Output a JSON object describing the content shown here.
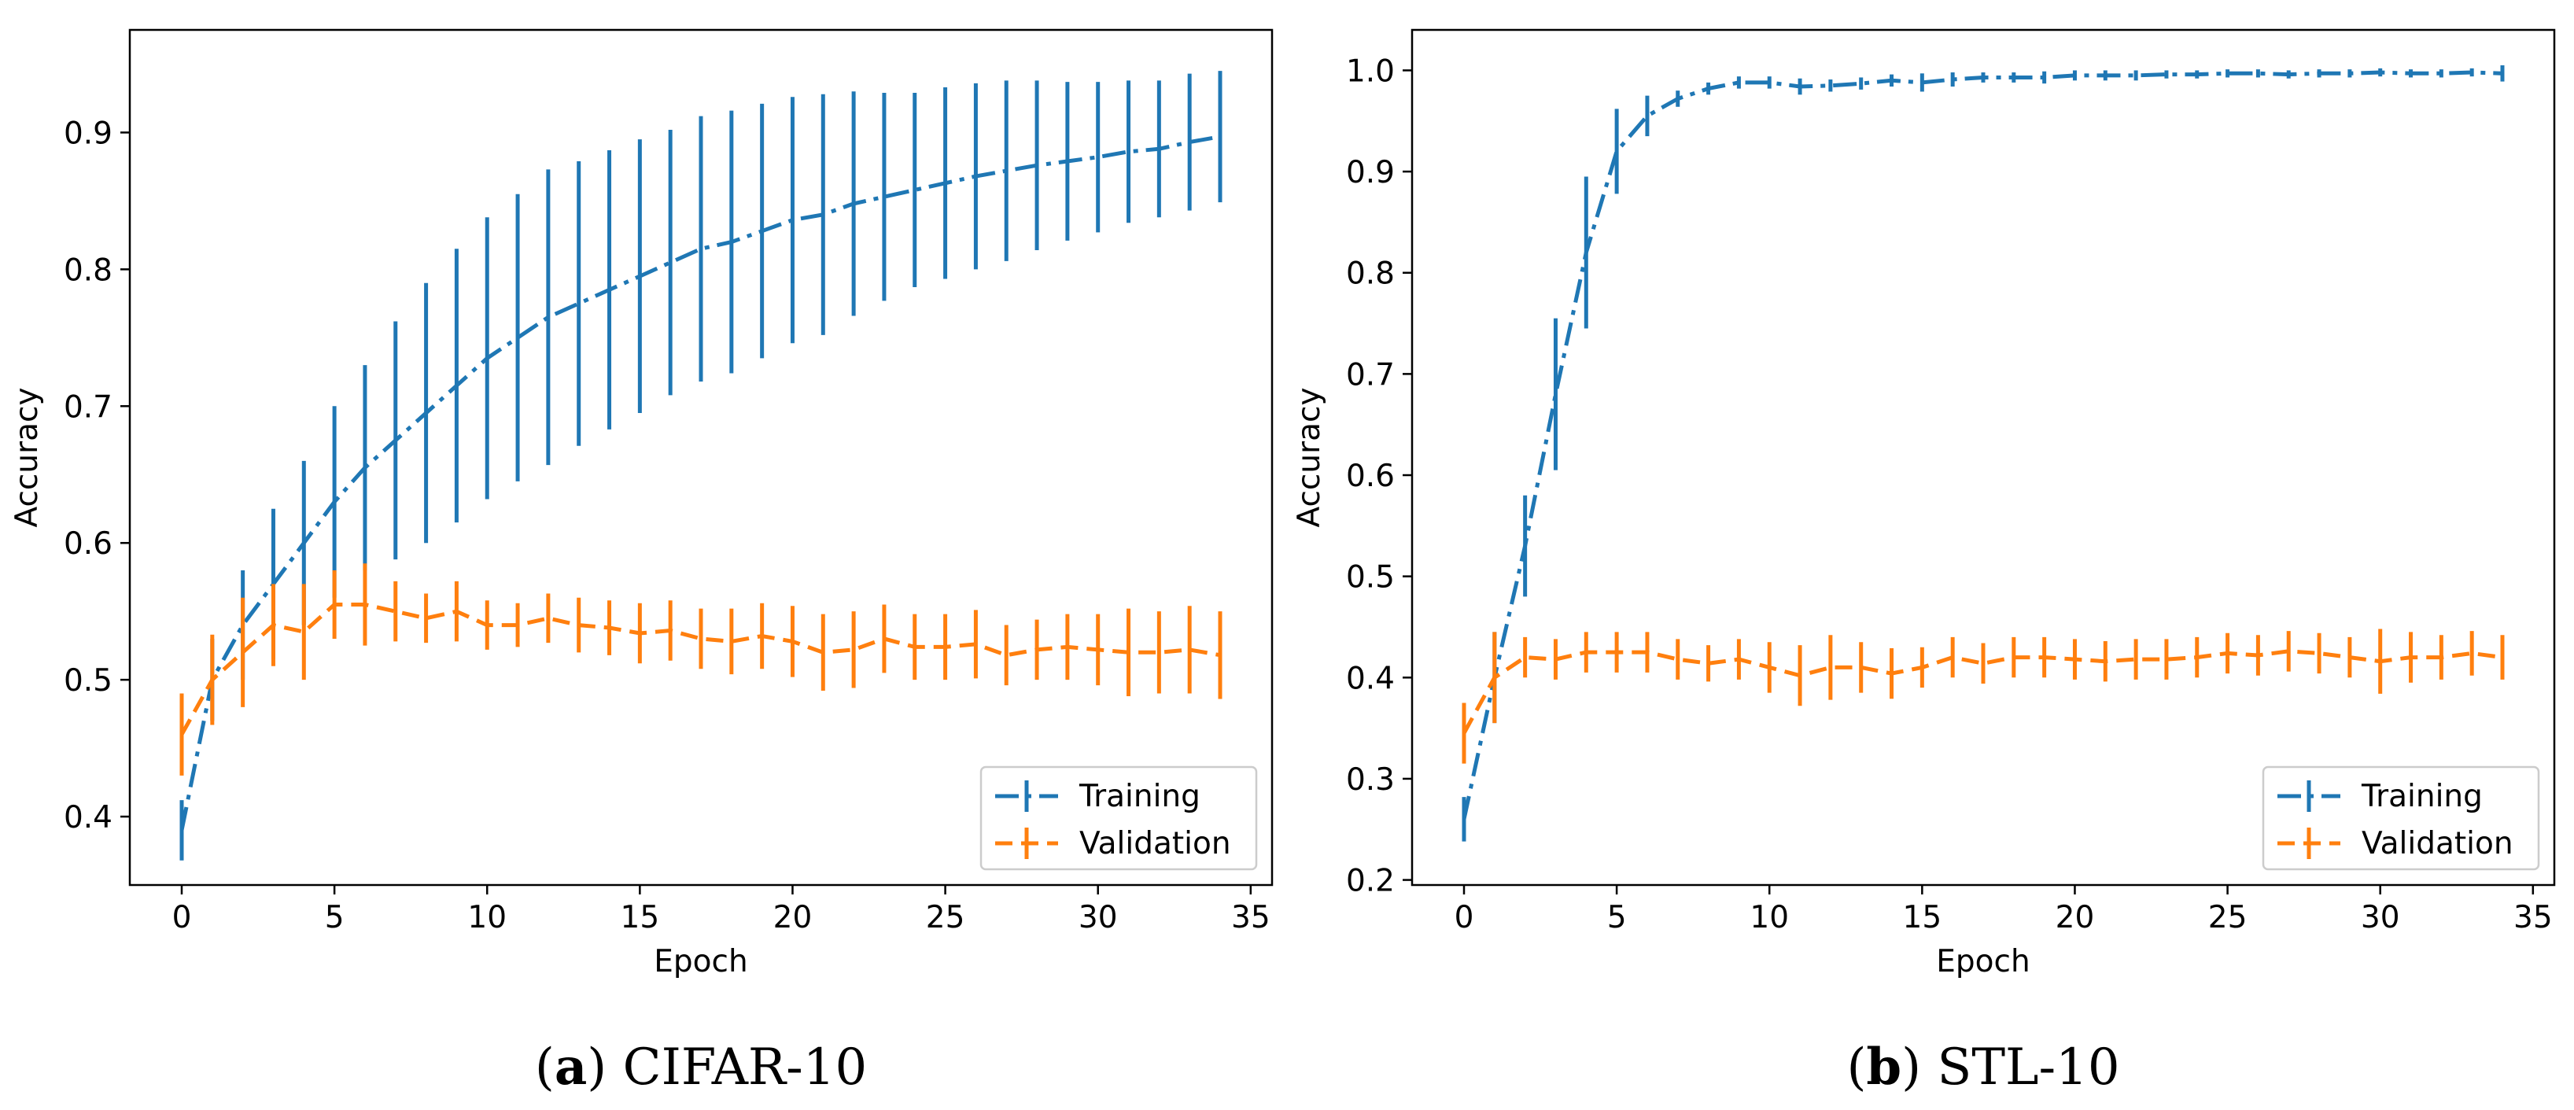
{
  "chart_data": [
    {
      "type": "line",
      "caption": {
        "letter": "a",
        "text": "CIFAR-10"
      },
      "xlabel": "Epoch",
      "ylabel": "Accuracy",
      "xlim": [
        -1.7,
        35.7
      ],
      "ylim": [
        0.35,
        0.975
      ],
      "xticks": [
        0,
        5,
        10,
        15,
        20,
        25,
        30,
        35
      ],
      "xtick_labels": [
        "0",
        "5",
        "10",
        "15",
        "20",
        "25",
        "30",
        "35"
      ],
      "yticks": [
        0.4,
        0.5,
        0.6,
        0.7,
        0.8,
        0.9
      ],
      "ytick_labels": [
        "0.4",
        "0.5",
        "0.6",
        "0.7",
        "0.8",
        "0.9"
      ],
      "legend": {
        "placement": "lower-right",
        "entries": [
          "Training",
          "Validation"
        ]
      },
      "grid": false,
      "series": [
        {
          "name": "Training",
          "color": "#1f77b4",
          "linestyle": "dashdot",
          "x": [
            0,
            1,
            2,
            3,
            4,
            5,
            6,
            7,
            8,
            9,
            10,
            11,
            12,
            13,
            14,
            15,
            16,
            17,
            18,
            19,
            20,
            21,
            22,
            23,
            24,
            25,
            26,
            27,
            28,
            29,
            30,
            31,
            32,
            33,
            34
          ],
          "y": [
            0.39,
            0.5,
            0.54,
            0.57,
            0.6,
            0.63,
            0.655,
            0.675,
            0.695,
            0.715,
            0.735,
            0.75,
            0.765,
            0.775,
            0.785,
            0.795,
            0.805,
            0.815,
            0.82,
            0.828,
            0.836,
            0.84,
            0.848,
            0.853,
            0.858,
            0.863,
            0.868,
            0.872,
            0.876,
            0.879,
            0.882,
            0.886,
            0.888,
            0.893,
            0.897
          ],
          "err": [
            0.022,
            0.03,
            0.04,
            0.055,
            0.06,
            0.07,
            0.075,
            0.087,
            0.095,
            0.1,
            0.103,
            0.105,
            0.108,
            0.104,
            0.102,
            0.1,
            0.097,
            0.097,
            0.096,
            0.093,
            0.09,
            0.088,
            0.082,
            0.076,
            0.071,
            0.07,
            0.068,
            0.066,
            0.062,
            0.058,
            0.055,
            0.052,
            0.05,
            0.05,
            0.048
          ]
        },
        {
          "name": "Validation",
          "color": "#ff7f0e",
          "linestyle": "dashed",
          "x": [
            0,
            1,
            2,
            3,
            4,
            5,
            6,
            7,
            8,
            9,
            10,
            11,
            12,
            13,
            14,
            15,
            16,
            17,
            18,
            19,
            20,
            21,
            22,
            23,
            24,
            25,
            26,
            27,
            28,
            29,
            30,
            31,
            32,
            33,
            34
          ],
          "y": [
            0.46,
            0.5,
            0.52,
            0.54,
            0.535,
            0.555,
            0.555,
            0.55,
            0.545,
            0.55,
            0.54,
            0.54,
            0.545,
            0.54,
            0.538,
            0.534,
            0.536,
            0.53,
            0.528,
            0.532,
            0.528,
            0.52,
            0.522,
            0.53,
            0.524,
            0.524,
            0.526,
            0.518,
            0.522,
            0.524,
            0.522,
            0.52,
            0.52,
            0.522,
            0.518
          ],
          "err": [
            0.03,
            0.033,
            0.04,
            0.03,
            0.035,
            0.025,
            0.03,
            0.022,
            0.018,
            0.022,
            0.018,
            0.016,
            0.018,
            0.02,
            0.02,
            0.022,
            0.022,
            0.022,
            0.024,
            0.024,
            0.026,
            0.028,
            0.028,
            0.025,
            0.024,
            0.024,
            0.025,
            0.022,
            0.022,
            0.024,
            0.026,
            0.032,
            0.03,
            0.032,
            0.032
          ]
        }
      ]
    },
    {
      "type": "line",
      "caption": {
        "letter": "b",
        "text": "STL-10"
      },
      "xlabel": "Epoch",
      "ylabel": "Accuracy",
      "xlim": [
        -1.7,
        35.7
      ],
      "ylim": [
        0.195,
        1.04
      ],
      "xticks": [
        0,
        5,
        10,
        15,
        20,
        25,
        30,
        35
      ],
      "xtick_labels": [
        "0",
        "5",
        "10",
        "15",
        "20",
        "25",
        "30",
        "35"
      ],
      "yticks": [
        0.2,
        0.3,
        0.4,
        0.5,
        0.6,
        0.7,
        0.8,
        0.9,
        1.0
      ],
      "ytick_labels": [
        "0.2",
        "0.3",
        "0.4",
        "0.5",
        "0.6",
        "0.7",
        "0.8",
        "0.9",
        "1.0"
      ],
      "legend": {
        "placement": "lower-right",
        "entries": [
          "Training",
          "Validation"
        ]
      },
      "grid": false,
      "series": [
        {
          "name": "Training",
          "color": "#1f77b4",
          "linestyle": "dashdot",
          "x": [
            0,
            1,
            2,
            3,
            4,
            5,
            6,
            7,
            8,
            9,
            10,
            11,
            12,
            13,
            14,
            15,
            16,
            17,
            18,
            19,
            20,
            21,
            22,
            23,
            24,
            25,
            26,
            27,
            28,
            29,
            30,
            31,
            32,
            33,
            34
          ],
          "y": [
            0.26,
            0.4,
            0.53,
            0.68,
            0.82,
            0.92,
            0.955,
            0.972,
            0.982,
            0.988,
            0.988,
            0.984,
            0.985,
            0.987,
            0.99,
            0.988,
            0.991,
            0.993,
            0.993,
            0.993,
            0.995,
            0.995,
            0.995,
            0.996,
            0.996,
            0.997,
            0.997,
            0.996,
            0.997,
            0.997,
            0.998,
            0.997,
            0.997,
            0.998,
            0.997
          ],
          "err": [
            0.022,
            0.045,
            0.05,
            0.075,
            0.075,
            0.042,
            0.02,
            0.008,
            0.006,
            0.006,
            0.006,
            0.008,
            0.006,
            0.006,
            0.006,
            0.009,
            0.007,
            0.005,
            0.005,
            0.006,
            0.005,
            0.005,
            0.005,
            0.004,
            0.004,
            0.004,
            0.004,
            0.004,
            0.004,
            0.004,
            0.004,
            0.004,
            0.004,
            0.004,
            0.008
          ]
        },
        {
          "name": "Validation",
          "color": "#ff7f0e",
          "linestyle": "dashed",
          "x": [
            0,
            1,
            2,
            3,
            4,
            5,
            6,
            7,
            8,
            9,
            10,
            11,
            12,
            13,
            14,
            15,
            16,
            17,
            18,
            19,
            20,
            21,
            22,
            23,
            24,
            25,
            26,
            27,
            28,
            29,
            30,
            31,
            32,
            33,
            34
          ],
          "y": [
            0.345,
            0.4,
            0.42,
            0.418,
            0.425,
            0.425,
            0.425,
            0.418,
            0.414,
            0.418,
            0.41,
            0.402,
            0.41,
            0.41,
            0.404,
            0.41,
            0.42,
            0.414,
            0.42,
            0.42,
            0.418,
            0.416,
            0.418,
            0.418,
            0.42,
            0.424,
            0.422,
            0.426,
            0.424,
            0.42,
            0.416,
            0.42,
            0.42,
            0.424,
            0.42
          ],
          "err": [
            0.03,
            0.045,
            0.02,
            0.02,
            0.02,
            0.02,
            0.02,
            0.02,
            0.018,
            0.02,
            0.025,
            0.03,
            0.032,
            0.025,
            0.025,
            0.02,
            0.02,
            0.02,
            0.02,
            0.02,
            0.02,
            0.02,
            0.02,
            0.02,
            0.02,
            0.02,
            0.02,
            0.02,
            0.02,
            0.02,
            0.032,
            0.025,
            0.022,
            0.022,
            0.022
          ]
        }
      ]
    }
  ]
}
